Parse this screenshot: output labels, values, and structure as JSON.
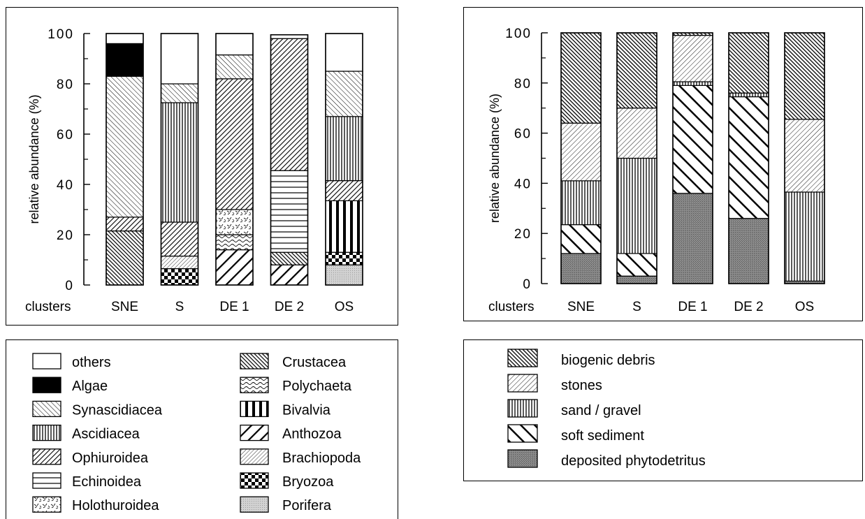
{
  "chart_data": [
    {
      "type": "bar",
      "stacked": true,
      "title": "",
      "xlabel": "clusters",
      "ylabel": "relative abundance (%)",
      "ylim": [
        0,
        100
      ],
      "yticks": [
        0,
        20,
        40,
        60,
        80,
        100
      ],
      "categories": [
        "SNE",
        "S",
        "DE 1",
        "DE 2",
        "OS"
      ],
      "series": [
        {
          "name": "Porifera",
          "pattern": "porifera",
          "values": [
            0,
            0,
            0,
            0,
            8
          ]
        },
        {
          "name": "Bryozoa",
          "pattern": "bryozoa",
          "values": [
            0,
            6.5,
            0,
            0,
            5
          ]
        },
        {
          "name": "Brachiopoda",
          "pattern": "brachiopoda",
          "values": [
            0,
            5,
            0,
            0,
            0
          ]
        },
        {
          "name": "Anthozoa",
          "pattern": "anthozoa",
          "values": [
            0,
            0,
            14,
            8,
            0
          ]
        },
        {
          "name": "Bivalvia",
          "pattern": "bivalvia",
          "values": [
            0,
            0,
            0,
            0,
            20.5
          ]
        },
        {
          "name": "Polychaeta",
          "pattern": "polychaeta",
          "values": [
            0,
            0,
            6,
            0,
            0
          ]
        },
        {
          "name": "Crustacea",
          "pattern": "crustacea",
          "values": [
            21.5,
            0,
            0,
            5,
            0
          ]
        },
        {
          "name": "Holothuroidea",
          "pattern": "holothuroidea",
          "values": [
            0,
            0,
            10,
            0,
            0
          ]
        },
        {
          "name": "Echinoidea",
          "pattern": "echinoidea",
          "values": [
            0,
            0,
            0,
            32.5,
            0
          ]
        },
        {
          "name": "Ophiuroidea",
          "pattern": "ophiuroidea",
          "values": [
            5.5,
            13.5,
            52,
            52.5,
            8
          ]
        },
        {
          "name": "Ascidiacea",
          "pattern": "ascidiacea",
          "values": [
            0,
            47.5,
            0,
            0,
            25.5
          ]
        },
        {
          "name": "Synascidiacea",
          "pattern": "synascidiacea",
          "values": [
            56,
            7.5,
            9.5,
            0,
            18
          ]
        },
        {
          "name": "Algae",
          "pattern": "algae",
          "values": [
            13,
            0,
            0,
            0,
            0
          ]
        },
        {
          "name": "others",
          "pattern": "others",
          "values": [
            4,
            20,
            8.5,
            1.5,
            15
          ]
        }
      ]
    },
    {
      "type": "bar",
      "stacked": true,
      "title": "",
      "xlabel": "clusters",
      "ylabel": "relative abundance (%)",
      "ylim": [
        0,
        100
      ],
      "yticks": [
        0,
        20,
        40,
        60,
        80,
        100
      ],
      "categories": [
        "SNE",
        "S",
        "DE 1",
        "DE 2",
        "OS"
      ],
      "series": [
        {
          "name": "deposited phytodetritus",
          "pattern": "phyto",
          "values": [
            12,
            3,
            36,
            26,
            1
          ]
        },
        {
          "name": "soft sediment",
          "pattern": "softsed",
          "values": [
            11.5,
            9,
            43,
            48.5,
            0
          ]
        },
        {
          "name": "sand / gravel",
          "pattern": "sand",
          "values": [
            17.5,
            38,
            1.5,
            1.5,
            35.5
          ]
        },
        {
          "name": "stones",
          "pattern": "stones",
          "values": [
            23,
            20,
            18.5,
            0,
            29
          ]
        },
        {
          "name": "biogenic debris",
          "pattern": "biogenic",
          "values": [
            36,
            30,
            1,
            24,
            34.5
          ]
        }
      ]
    }
  ],
  "legend_left": {
    "col1": [
      {
        "label": "others",
        "pattern": "others"
      },
      {
        "label": "Algae",
        "pattern": "algae"
      },
      {
        "label": "Synascidiacea",
        "pattern": "synascidiacea"
      },
      {
        "label": "Ascidiacea",
        "pattern": "ascidiacea"
      },
      {
        "label": "Ophiuroidea",
        "pattern": "ophiuroidea"
      },
      {
        "label": "Echinoidea",
        "pattern": "echinoidea"
      },
      {
        "label": "Holothuroidea",
        "pattern": "holothuroidea"
      }
    ],
    "col2": [
      {
        "label": "Crustacea",
        "pattern": "crustacea"
      },
      {
        "label": "Polychaeta",
        "pattern": "polychaeta"
      },
      {
        "label": "Bivalvia",
        "pattern": "bivalvia"
      },
      {
        "label": "Anthozoa",
        "pattern": "anthozoa"
      },
      {
        "label": "Brachiopoda",
        "pattern": "brachiopoda"
      },
      {
        "label": "Bryozoa",
        "pattern": "bryozoa"
      },
      {
        "label": "Porifera",
        "pattern": "porifera"
      }
    ]
  },
  "legend_right": [
    {
      "label": "biogenic debris",
      "pattern": "biogenic"
    },
    {
      "label": "stones",
      "pattern": "stones"
    },
    {
      "label": "sand / gravel",
      "pattern": "sand"
    },
    {
      "label": "soft sediment",
      "pattern": "softsed"
    },
    {
      "label": "deposited phytodetritus",
      "pattern": "phyto"
    }
  ]
}
